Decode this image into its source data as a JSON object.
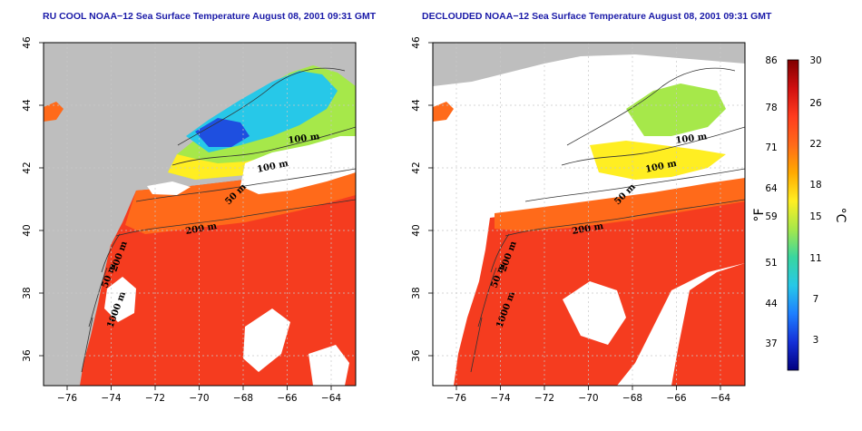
{
  "panels": [
    {
      "id": "left",
      "title": "RU COOL NOAA−12 Sea Surface Temperature August 08, 2001 09:31 GMT",
      "contour_labels": [
        "100 m",
        "100 m",
        "50 m",
        "200 m",
        "50 m",
        "200 m",
        "1000 m"
      ]
    },
    {
      "id": "right",
      "title": "DECLOUDED NOAA−12 Sea Surface Temperature August 08, 2001 09:31 GMT",
      "contour_labels": [
        "100 m",
        "100 m",
        "50 m",
        "200 m",
        "50 m",
        "200 m",
        "1000 m"
      ]
    }
  ],
  "axes": {
    "x_ticks": [
      "−76",
      "−74",
      "−72",
      "−70",
      "−68",
      "−66",
      "−64"
    ],
    "y_ticks": [
      "36",
      "38",
      "40",
      "42",
      "44",
      "46"
    ]
  },
  "colorbar": {
    "fahrenheit_labels": [
      "86",
      "78",
      "71",
      "64",
      "59",
      "51",
      "44",
      "37"
    ],
    "celsius_labels": [
      "30",
      "26",
      "22",
      "18",
      "15",
      "11",
      "7",
      "3"
    ],
    "unit_f": "°F",
    "unit_c": "°C",
    "gradient": [
      "#800000",
      "#d01010",
      "#ff3c1e",
      "#ff6a1a",
      "#ffaa00",
      "#ffee22",
      "#a6e84a",
      "#38d6a0",
      "#27c8e8",
      "#1e7fff",
      "#1530d8",
      "#000080"
    ]
  },
  "colors": {
    "land": "#bebebe",
    "cloud": "#ffffff",
    "warm_sst": "#f53c1f",
    "title_blue": "#1a1aa8"
  }
}
